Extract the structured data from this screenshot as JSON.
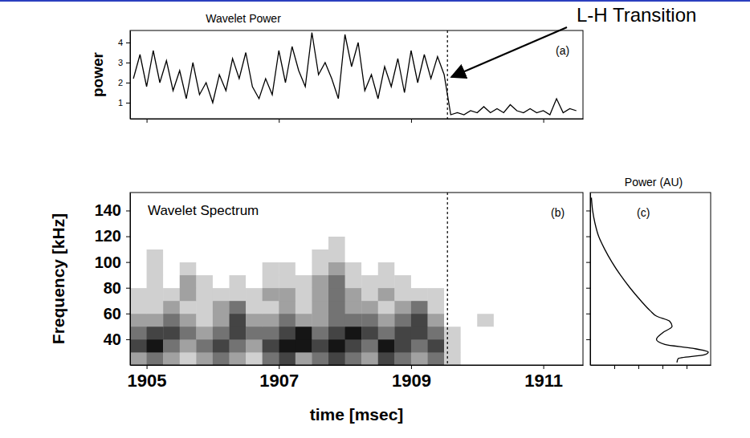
{
  "chart_data": [
    {
      "type": "line",
      "panel": "(a)",
      "title": "Wavelet Power",
      "ylabel": "power",
      "x": [
        1904.8,
        1904.9,
        1905.0,
        1905.1,
        1905.2,
        1905.3,
        1905.4,
        1905.5,
        1905.6,
        1905.7,
        1905.8,
        1905.9,
        1906.0,
        1906.1,
        1906.2,
        1906.3,
        1906.4,
        1906.5,
        1906.6,
        1906.7,
        1906.8,
        1906.9,
        1907.0,
        1907.1,
        1907.2,
        1907.3,
        1907.4,
        1907.5,
        1907.6,
        1907.7,
        1907.8,
        1907.9,
        1908.0,
        1908.1,
        1908.2,
        1908.3,
        1908.4,
        1908.5,
        1908.6,
        1908.7,
        1908.8,
        1908.9,
        1909.0,
        1909.1,
        1909.2,
        1909.3,
        1909.4,
        1909.5,
        1909.6,
        1909.7,
        1909.8,
        1909.9,
        1910.0,
        1910.1,
        1910.2,
        1910.3,
        1910.4,
        1910.5,
        1910.6,
        1910.7,
        1910.8,
        1910.9,
        1911.0,
        1911.1,
        1911.2,
        1911.3,
        1911.4,
        1911.5
      ],
      "values": [
        2.2,
        3.4,
        1.8,
        3.6,
        2.0,
        3.1,
        1.6,
        2.6,
        1.2,
        3.0,
        1.4,
        2.0,
        1.0,
        2.4,
        1.6,
        3.2,
        2.2,
        3.5,
        1.8,
        1.2,
        2.2,
        1.4,
        3.6,
        2.0,
        3.8,
        2.6,
        1.8,
        4.5,
        2.4,
        3.0,
        2.2,
        1.2,
        4.4,
        2.8,
        4.0,
        1.6,
        2.4,
        1.2,
        2.8,
        1.8,
        3.2,
        1.5,
        3.6,
        2.0,
        3.4,
        2.2,
        3.3,
        2.4,
        0.4,
        0.5,
        0.4,
        0.6,
        0.5,
        0.8,
        0.5,
        0.7,
        0.5,
        0.9,
        0.6,
        0.5,
        0.7,
        0.5,
        0.6,
        0.4,
        1.2,
        0.5,
        0.7,
        0.6
      ],
      "color": "#000000",
      "line_style": "solid",
      "xlim": [
        1904.75,
        1911.6
      ],
      "ylim": [
        0.2,
        4.6
      ],
      "xticks": [
        1905,
        1907,
        1909,
        1911
      ],
      "yticks": [
        1,
        2,
        3,
        4
      ],
      "tick_labels": "y",
      "vline": 1909.55,
      "annotations": [
        {
          "text": "L-H Transition"
        }
      ]
    },
    {
      "type": "heatmap",
      "panel": "(b)",
      "title": "Wavelet Spectrum",
      "xlabel": "time [msec]",
      "ylabel": "Frequency [kHz]",
      "x_edges": [
        1904.75,
        1905,
        1905.25,
        1905.5,
        1905.75,
        1906,
        1906.25,
        1906.5,
        1906.75,
        1907,
        1907.25,
        1907.5,
        1907.75,
        1908,
        1908.25,
        1908.5,
        1908.75,
        1909,
        1909.25,
        1909.5,
        1909.75,
        1910,
        1910.25,
        1910.5,
        1910.75,
        1911,
        1911.25,
        1911.5
      ],
      "y_edges": [
        20,
        30,
        40,
        50,
        60,
        70,
        80,
        90,
        100,
        110,
        120,
        130,
        140,
        150
      ],
      "z": [
        [
          2,
          3,
          2,
          1,
          2,
          3,
          2,
          1,
          3,
          4,
          2,
          3,
          4,
          3,
          2,
          4,
          3,
          2,
          3,
          1,
          0,
          0,
          0,
          0,
          0,
          0,
          0
        ],
        [
          4,
          5,
          3,
          2,
          3,
          4,
          3,
          2,
          4,
          5,
          5,
          4,
          5,
          4,
          3,
          5,
          4,
          3,
          4,
          1,
          0,
          0,
          0,
          0,
          0,
          0,
          0
        ],
        [
          3,
          4,
          4,
          3,
          2,
          3,
          4,
          3,
          3,
          4,
          5,
          3,
          4,
          5,
          4,
          3,
          4,
          4,
          3,
          1,
          0,
          0,
          0,
          0,
          0,
          0,
          0
        ],
        [
          2,
          2,
          3,
          2,
          1,
          2,
          4,
          2,
          2,
          3,
          2,
          2,
          3,
          3,
          3,
          2,
          3,
          4,
          2,
          0,
          0,
          1,
          0,
          0,
          0,
          0,
          0
        ],
        [
          1,
          1,
          2,
          1,
          1,
          2,
          3,
          1,
          1,
          2,
          1,
          2,
          3,
          2,
          2,
          1,
          2,
          3,
          1,
          0,
          0,
          0,
          0,
          0,
          0,
          0,
          0
        ],
        [
          1,
          1,
          1,
          2,
          1,
          1,
          1,
          1,
          2,
          2,
          1,
          2,
          3,
          2,
          1,
          2,
          1,
          1,
          1,
          0,
          0,
          0,
          0,
          0,
          0,
          0,
          0
        ],
        [
          0,
          1,
          0,
          2,
          1,
          0,
          1,
          0,
          1,
          1,
          1,
          2,
          3,
          1,
          1,
          1,
          1,
          0,
          0,
          0,
          0,
          0,
          0,
          0,
          0,
          0,
          0
        ],
        [
          0,
          1,
          0,
          1,
          0,
          0,
          0,
          0,
          1,
          1,
          0,
          1,
          2,
          1,
          0,
          1,
          0,
          0,
          0,
          0,
          0,
          0,
          0,
          0,
          0,
          0,
          0
        ],
        [
          0,
          1,
          0,
          0,
          0,
          0,
          0,
          0,
          0,
          0,
          0,
          1,
          1,
          0,
          0,
          0,
          0,
          0,
          0,
          0,
          0,
          0,
          0,
          0,
          0,
          0,
          0
        ],
        [
          0,
          0,
          0,
          0,
          0,
          0,
          0,
          0,
          0,
          0,
          0,
          0,
          1,
          0,
          0,
          0,
          0,
          0,
          0,
          0,
          0,
          0,
          0,
          0,
          0,
          0,
          0
        ],
        [
          0,
          0,
          0,
          0,
          0,
          0,
          0,
          0,
          0,
          0,
          0,
          0,
          0,
          0,
          0,
          0,
          0,
          0,
          0,
          0,
          0,
          0,
          0,
          0,
          0,
          0,
          0
        ],
        [
          0,
          0,
          0,
          0,
          0,
          0,
          0,
          0,
          0,
          0,
          0,
          0,
          0,
          0,
          0,
          0,
          0,
          0,
          0,
          0,
          0,
          0,
          0,
          0,
          0,
          0,
          0
        ],
        [
          0,
          0,
          0,
          0,
          0,
          0,
          0,
          0,
          0,
          0,
          0,
          0,
          0,
          0,
          0,
          0,
          0,
          0,
          0,
          0,
          0,
          0,
          0,
          0,
          0,
          0,
          0
        ]
      ],
      "xlim": [
        1904.75,
        1911.6
      ],
      "ylim": [
        20,
        154
      ],
      "xticks": [
        1905,
        1907,
        1909,
        1911
      ],
      "yticks": [
        40,
        60,
        80,
        100,
        120,
        140
      ],
      "vline": 1909.55
    },
    {
      "type": "line",
      "panel": "(c)",
      "title": "Power (AU)",
      "x": [
        0.72,
        0.73,
        0.95,
        0.98,
        0.85,
        0.62,
        0.55,
        0.6,
        0.68,
        0.66,
        0.55,
        0.5,
        0.42,
        0.33,
        0.25,
        0.18,
        0.12,
        0.07,
        0.04,
        0.02,
        0.01
      ],
      "y": [
        22,
        25,
        28,
        30,
        33,
        36,
        40,
        45,
        50,
        54,
        58,
        62,
        70,
        80,
        90,
        100,
        110,
        120,
        130,
        140,
        150
      ],
      "color": "#000000",
      "line_style": "solid",
      "xlim": [
        0,
        1
      ],
      "ylim": [
        20,
        154
      ],
      "xticks": [
        0.2,
        0.4,
        0.6,
        0.8
      ],
      "yticks": [
        40,
        60,
        80,
        100,
        120,
        140
      ],
      "tick_labels": false
    }
  ]
}
